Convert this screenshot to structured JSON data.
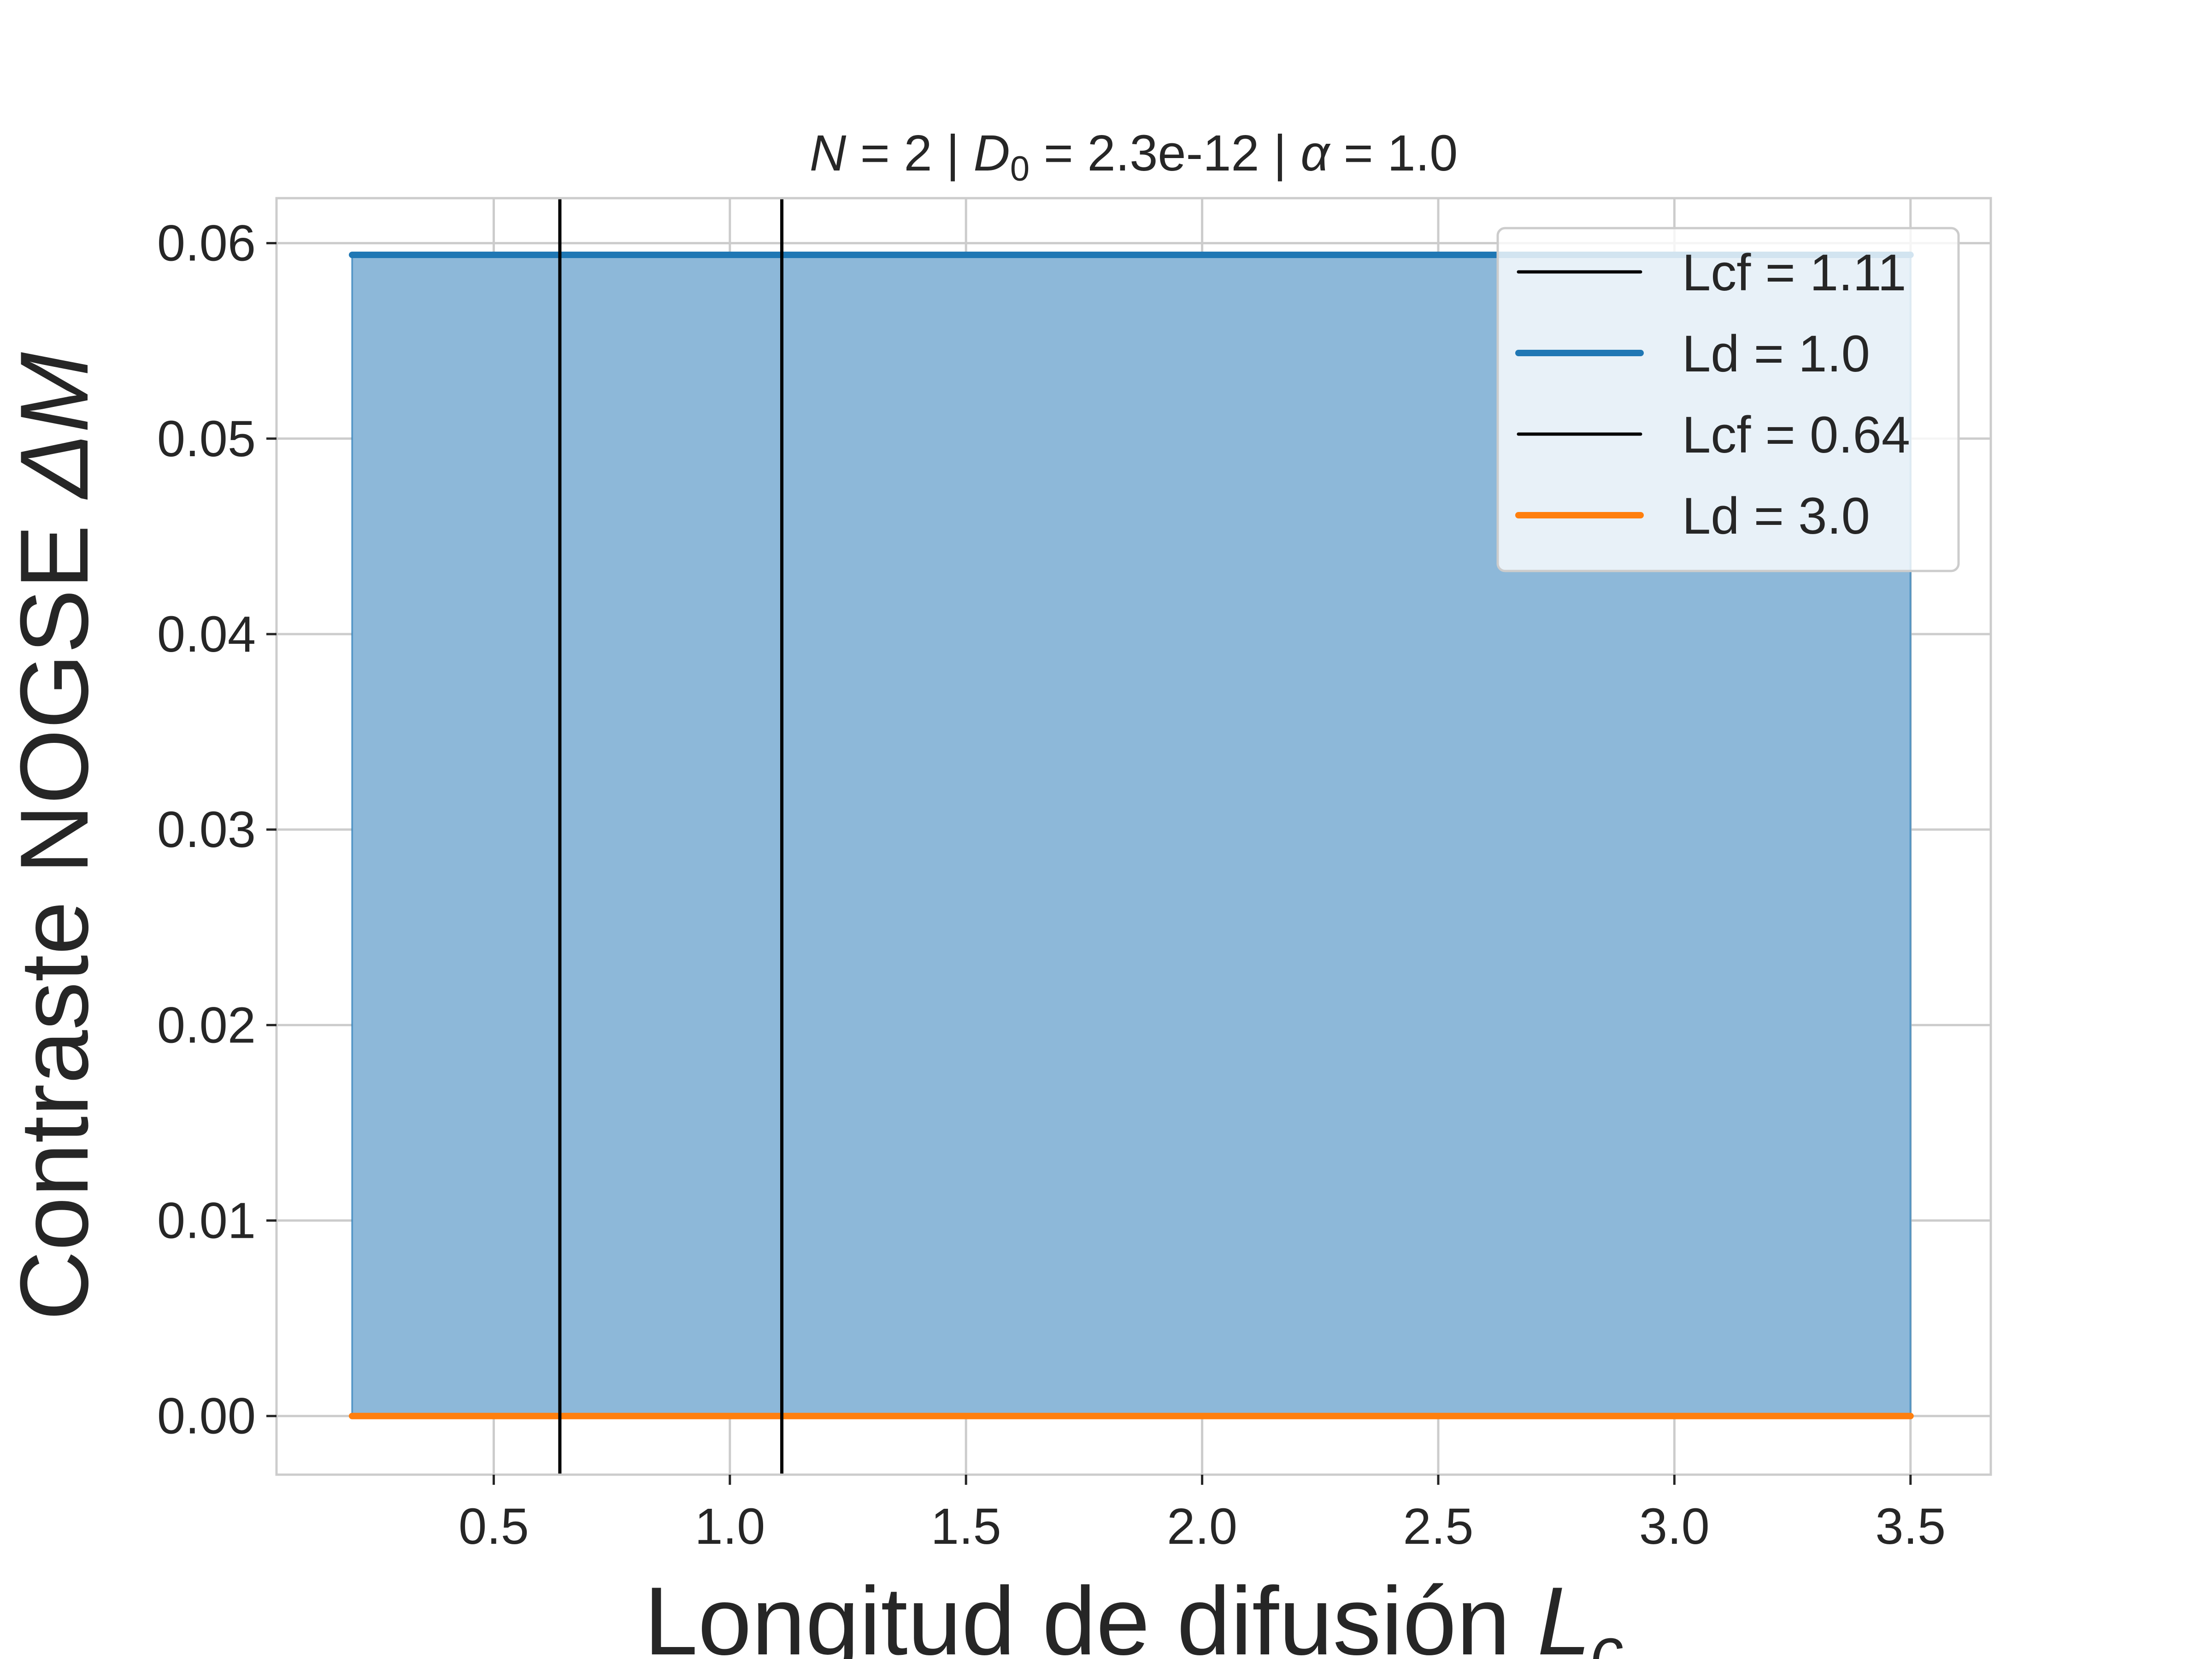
{
  "chart_data": {
    "type": "line",
    "title_parts": {
      "n_sym": "N",
      "n_val": " = 2 | ",
      "d_sym": "D",
      "d_sub": "0",
      "d_val": " = 2.3e-12 | ",
      "a_sym": "α",
      "a_val": " = 1.0"
    },
    "xlabel": {
      "text": "Longitud de difusión ",
      "sym": "L",
      "sub": "c"
    },
    "ylabel": {
      "text": "Contraste NOGSE ",
      "sym": "ΔM"
    },
    "xlim": [
      0.04,
      3.67
    ],
    "ylim": [
      -0.003,
      0.0623
    ],
    "xticks": [
      0.5,
      1.0,
      1.5,
      2.0,
      2.5,
      3.0,
      3.5
    ],
    "xtick_labels": [
      "0.5",
      "1.0",
      "1.5",
      "2.0",
      "2.5",
      "3.0",
      "3.5"
    ],
    "yticks": [
      0.0,
      0.01,
      0.02,
      0.03,
      0.04,
      0.05,
      0.06
    ],
    "ytick_labels": [
      "0.00",
      "0.01",
      "0.02",
      "0.03",
      "0.04",
      "0.05",
      "0.06"
    ],
    "grid": true,
    "series": [
      {
        "name": "Ld = 1.0",
        "color": "#1f77b4",
        "x": [
          0.2,
          3.5
        ],
        "y": [
          0.0594,
          0.0594
        ],
        "fill_to_zero": true,
        "fill_color": "#8db8d9"
      },
      {
        "name": "Ld = 3.0",
        "color": "#ff7f0e",
        "x": [
          0.2,
          3.5
        ],
        "y": [
          0.0,
          0.0
        ]
      }
    ],
    "vlines": [
      {
        "name": "Lcf = 1.11",
        "x": 1.11,
        "color": "#000000"
      },
      {
        "name": "Lcf = 0.64",
        "x": 0.64,
        "color": "#000000"
      }
    ],
    "legend": {
      "position": "top-right",
      "entries": [
        {
          "label": "Lcf = 1.11",
          "color": "#000000",
          "kind": "thin"
        },
        {
          "label": "Ld = 1.0",
          "color": "#1f77b4",
          "kind": "thick"
        },
        {
          "label": "Lcf = 0.64",
          "color": "#000000",
          "kind": "thin"
        },
        {
          "label": "Ld = 3.0",
          "color": "#ff7f0e",
          "kind": "thick"
        }
      ]
    }
  }
}
